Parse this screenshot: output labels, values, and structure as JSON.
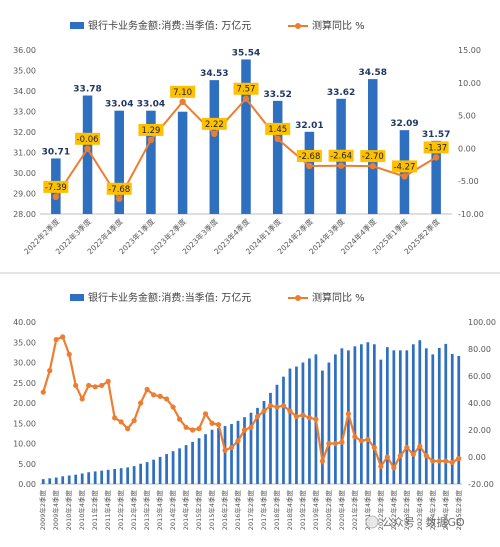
{
  "chart_data": [
    {
      "type": "bar",
      "legend": {
        "bar": "银行卡业务金额:消费:当季值: 万亿元",
        "line": "测算同比 %"
      },
      "legend_position": "top",
      "categories": [
        "2022年2季度",
        "2022年3季度",
        "2022年4季度",
        "2023年1季度",
        "2023年2季度",
        "2023年3季度",
        "2023年4季度",
        "2024年1季度",
        "2024年2季度",
        "2024年3季度",
        "2024年4季度",
        "2025年1季度",
        "2025年2季度"
      ],
      "series": [
        {
          "name": "银行卡业务金额:消费:当季值: 万亿元",
          "type": "bar",
          "axis": "left",
          "values": [
            30.71,
            33.78,
            33.04,
            33.04,
            32.99,
            34.53,
            35.54,
            33.52,
            32.01,
            33.62,
            34.58,
            32.09,
            31.57
          ]
        },
        {
          "name": "测算同比 %",
          "type": "line",
          "axis": "right",
          "values": [
            -7.39,
            -0.06,
            -7.68,
            1.29,
            7.1,
            2.22,
            7.57,
            1.45,
            -2.68,
            -2.64,
            -2.7,
            -4.27,
            -1.37
          ]
        }
      ],
      "bar_labels": [
        "30.71",
        "33.78",
        "33.04",
        "33.04",
        "",
        "34.53",
        "35.54",
        "33.52",
        "32.01",
        "33.62",
        "34.58",
        "32.09",
        "31.57"
      ],
      "line_labels": [
        "-7.39",
        "-0.06",
        "-7.68",
        "1.29",
        "7.10",
        "2.22",
        "7.57",
        "1.45",
        "-2.68",
        "-2.64",
        "-2.70",
        "-4.27",
        "-1.37"
      ],
      "ylim_left": [
        28,
        36
      ],
      "yticks_left": [
        "28.00",
        "29.00",
        "30.00",
        "31.00",
        "32.00",
        "33.00",
        "34.00",
        "35.00",
        "36.00"
      ],
      "ylim_right": [
        -10,
        15
      ],
      "yticks_right": [
        "-10.00",
        "-5.00",
        "0.00",
        "5.00",
        "10.00",
        "15.00"
      ],
      "colors": {
        "bar": "#2e6fc0",
        "line": "#ed7d31",
        "label_box": "#ffc000"
      }
    },
    {
      "type": "bar",
      "legend": {
        "bar": "银行卡业务金额:消费:当季值: 万亿元",
        "line": "测算同比 %"
      },
      "legend_position": "top",
      "categories": [
        "2009年2季度",
        "2009年3季度",
        "2009年4季度",
        "2010年1季度",
        "2010年2季度",
        "2010年3季度",
        "2010年4季度",
        "2011年1季度",
        "2011年2季度",
        "2011年3季度",
        "2011年4季度",
        "2012年1季度",
        "2012年2季度",
        "2012年3季度",
        "2012年4季度",
        "2013年1季度",
        "2013年2季度",
        "2013年3季度",
        "2013年4季度",
        "2014年1季度",
        "2014年2季度",
        "2014年3季度",
        "2014年4季度",
        "2015年1季度",
        "2015年2季度",
        "2015年3季度",
        "2015年4季度",
        "2016年1季度",
        "2016年2季度",
        "2016年3季度",
        "2016年4季度",
        "2017年1季度",
        "2017年2季度",
        "2017年3季度",
        "2017年4季度",
        "2018年1季度",
        "2018年2季度",
        "2018年3季度",
        "2018年4季度",
        "2019年1季度",
        "2019年2季度",
        "2019年3季度",
        "2019年4季度",
        "2020年1季度",
        "2020年2季度",
        "2020年3季度",
        "2020年4季度",
        "2021年1季度",
        "2021年2季度",
        "2021年3季度",
        "2021年4季度",
        "2022年1季度",
        "2022年2季度",
        "2022年3季度",
        "2022年4季度",
        "2023年1季度",
        "2023年2季度",
        "2023年3季度",
        "2023年4季度",
        "2024年1季度",
        "2024年2季度",
        "2024年3季度",
        "2024年4季度",
        "2025年1季度",
        "2025年2季度"
      ],
      "visible_tick_labels": [
        "2009年2季度",
        "2009年4季度",
        "2010年2季度",
        "2010年4季度",
        "2011年2季度",
        "2011年4季度",
        "2012年2季度",
        "2012年4季度",
        "2013年2季度",
        "2013年4季度",
        "2014年2季度",
        "2014年4季度",
        "2015年2季度",
        "2015年4季度",
        "2016年2季度",
        "2016年4季度",
        "2017年2季度",
        "2017年4季度",
        "2018年2季度",
        "2018年4季度",
        "2019年2季度",
        "2019年4季度",
        "2020年2季度",
        "2020年4季度",
        "2021年2季度",
        "2021年4季度",
        "2022年2季度",
        "2022年4季度",
        "2023年2季度",
        "2023年4季度",
        "2024年2季度",
        "2024年4季度",
        "2025年2季度"
      ],
      "series": [
        {
          "name": "银行卡业务金额:消费:当季值: 万亿元",
          "type": "bar",
          "axis": "left",
          "values": [
            1.2,
            1.4,
            1.6,
            1.9,
            2.1,
            2.3,
            2.6,
            2.9,
            3.1,
            3.3,
            3.5,
            3.7,
            3.9,
            4.1,
            4.4,
            5.0,
            5.4,
            6.0,
            6.7,
            7.4,
            8.1,
            8.8,
            9.6,
            10.4,
            11.3,
            12.3,
            13.4,
            13.8,
            14.3,
            14.8,
            15.6,
            16.5,
            17.6,
            18.8,
            20.5,
            22.5,
            24.5,
            26.5,
            28.5,
            29.0,
            30.0,
            31.0,
            32.0,
            28.0,
            30.0,
            32.0,
            33.5,
            33.0,
            34.0,
            34.5,
            35.0,
            34.5,
            30.7,
            33.8,
            33.0,
            33.0,
            33.0,
            34.5,
            35.5,
            33.5,
            32.0,
            33.6,
            34.6,
            32.1,
            31.6
          ]
        },
        {
          "name": "测算同比 %",
          "type": "line",
          "axis": "right",
          "values": [
            48,
            64,
            87,
            89,
            76,
            53,
            43,
            53,
            52,
            53,
            56,
            29,
            26,
            21,
            27,
            40,
            50,
            46,
            45,
            43,
            37,
            28,
            22,
            20,
            21,
            32,
            25,
            24,
            5,
            7,
            12,
            20,
            22,
            30,
            34,
            38,
            37,
            38,
            34,
            30,
            31,
            29,
            28,
            -3,
            10,
            10,
            11,
            32,
            15,
            12,
            13,
            7,
            -7,
            0,
            -8,
            1,
            7,
            2,
            8,
            1,
            -3,
            -3,
            -3,
            -4,
            -1
          ]
        }
      ],
      "ylim_left": [
        0,
        40
      ],
      "yticks_left": [
        "0.00",
        "5.00",
        "10.00",
        "15.00",
        "20.00",
        "25.00",
        "30.00",
        "35.00",
        "40.00"
      ],
      "ylim_right": [
        -20,
        100
      ],
      "yticks_right": [
        "-20.00",
        "0.00",
        "20.00",
        "40.00",
        "60.00",
        "80.00",
        "100.00"
      ],
      "colors": {
        "bar": "#2e6fc0",
        "line": "#ed7d31"
      }
    }
  ],
  "watermark": "公众号 · 数据GO"
}
